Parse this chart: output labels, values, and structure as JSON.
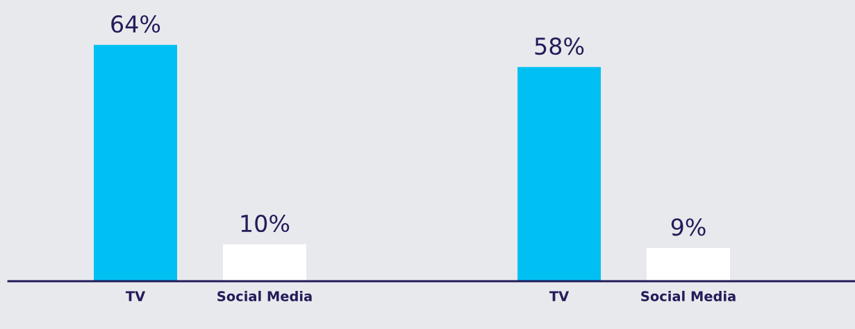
{
  "chart_data": {
    "type": "bar",
    "categories": [
      "TV",
      "Social Media",
      "TV",
      "Social Media"
    ],
    "values": [
      64,
      10,
      58,
      9
    ],
    "colors": [
      "#00c0f3",
      "#ffffff",
      "#00c0f3",
      "#ffffff"
    ],
    "value_labels": [
      "64%",
      "10%",
      "58%",
      "9%"
    ]
  }
}
